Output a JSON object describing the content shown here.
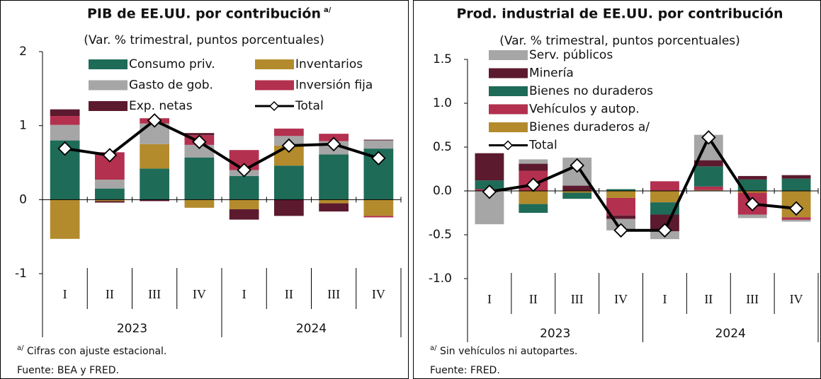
{
  "chart_data": [
    {
      "type": "bar",
      "stacked": true,
      "title": "PIB de EE.UU. por contribución",
      "title_note": "a/",
      "subtitle": "(Var. % trimestral, puntos porcentuales)",
      "categories": [
        "I",
        "II",
        "III",
        "IV",
        "I",
        "II",
        "III",
        "IV"
      ],
      "years": [
        "2023",
        "2024"
      ],
      "ylim": [
        -1,
        2
      ],
      "yticks": [
        2,
        1,
        0,
        -1
      ],
      "series": [
        {
          "name": "Consumo priv.",
          "color": "#1e6b58",
          "values": [
            0.8,
            0.15,
            0.42,
            0.57,
            0.32,
            0.46,
            0.61,
            0.69
          ]
        },
        {
          "name": "Inventarios",
          "color": "#b38b2c",
          "values": [
            -0.53,
            -0.02,
            0.33,
            -0.11,
            -0.13,
            0.27,
            -0.05,
            -0.22
          ]
        },
        {
          "name": "Gasto de gob.",
          "color": "#a6a6a6",
          "values": [
            0.21,
            0.12,
            0.28,
            0.17,
            0.08,
            0.13,
            0.18,
            0.11
          ]
        },
        {
          "name": "Inversión fija",
          "color": "#b3304f",
          "values": [
            0.12,
            0.37,
            0.07,
            0.13,
            0.27,
            0.1,
            0.1,
            -0.02
          ]
        },
        {
          "name": "Exp. netas",
          "color": "#5c1a2e",
          "values": [
            0.09,
            -0.02,
            -0.02,
            0.03,
            -0.14,
            -0.22,
            -0.11,
            0.01
          ]
        }
      ],
      "total": {
        "name": "Total",
        "color": "#000000",
        "values": [
          0.69,
          0.6,
          1.07,
          0.78,
          0.4,
          0.73,
          0.75,
          0.56
        ]
      },
      "footnote_mark": "a/",
      "footnote": "Cifras con ajuste estacional.",
      "source": "Fuente: BEA y FRED."
    },
    {
      "type": "bar",
      "stacked": true,
      "title": "Prod. industrial de EE.UU. por contribución",
      "subtitle": "(Var. % trimestral, puntos porcentuales)",
      "categories": [
        "I",
        "II",
        "III",
        "IV",
        "I",
        "II",
        "III",
        "IV"
      ],
      "years": [
        "2023",
        "2024"
      ],
      "ylim": [
        -1,
        1.5
      ],
      "yticks": [
        1.5,
        {
          "value": 1.0,
          "label": "1.0"
        },
        0.5,
        {
          "value": 0.0,
          "label": "0.0"
        },
        -0.5,
        {
          "value": -1.0,
          "label": "-1.0"
        }
      ],
      "series": [
        {
          "name": "Serv. públicos",
          "color": "#a6a6a6",
          "values": [
            -0.38,
            0.05,
            0.32,
            -0.13,
            -0.09,
            0.29,
            -0.04,
            -0.02
          ]
        },
        {
          "name": "Minería",
          "color": "#5c1a2e",
          "values": [
            0.31,
            0.08,
            0.06,
            -0.04,
            -0.19,
            0.07,
            0.04,
            0.04
          ]
        },
        {
          "name": "Bienes no duraderos",
          "color": "#1e6b58",
          "values": [
            0.1,
            -0.1,
            -0.07,
            0.02,
            -0.14,
            0.23,
            0.13,
            0.14
          ]
        },
        {
          "name": "Vehículos y autop.",
          "color": "#b3304f",
          "values": [
            0.02,
            0.23,
            0.0,
            -0.2,
            0.11,
            0.04,
            -0.25,
            -0.03
          ]
        },
        {
          "name": "Bienes duraderos a/",
          "color": "#b38b2c",
          "values": [
            0.0,
            -0.15,
            -0.02,
            -0.08,
            -0.13,
            0.01,
            -0.02,
            -0.3
          ]
        }
      ],
      "total": {
        "name": "Total",
        "color": "#000000",
        "values": [
          -0.01,
          0.07,
          0.29,
          -0.45,
          -0.45,
          0.61,
          -0.15,
          -0.2
        ]
      },
      "footnote_mark": "a/",
      "footnote": "Sin vehículos ni autopartes.",
      "source": "Fuente: FRED."
    }
  ]
}
